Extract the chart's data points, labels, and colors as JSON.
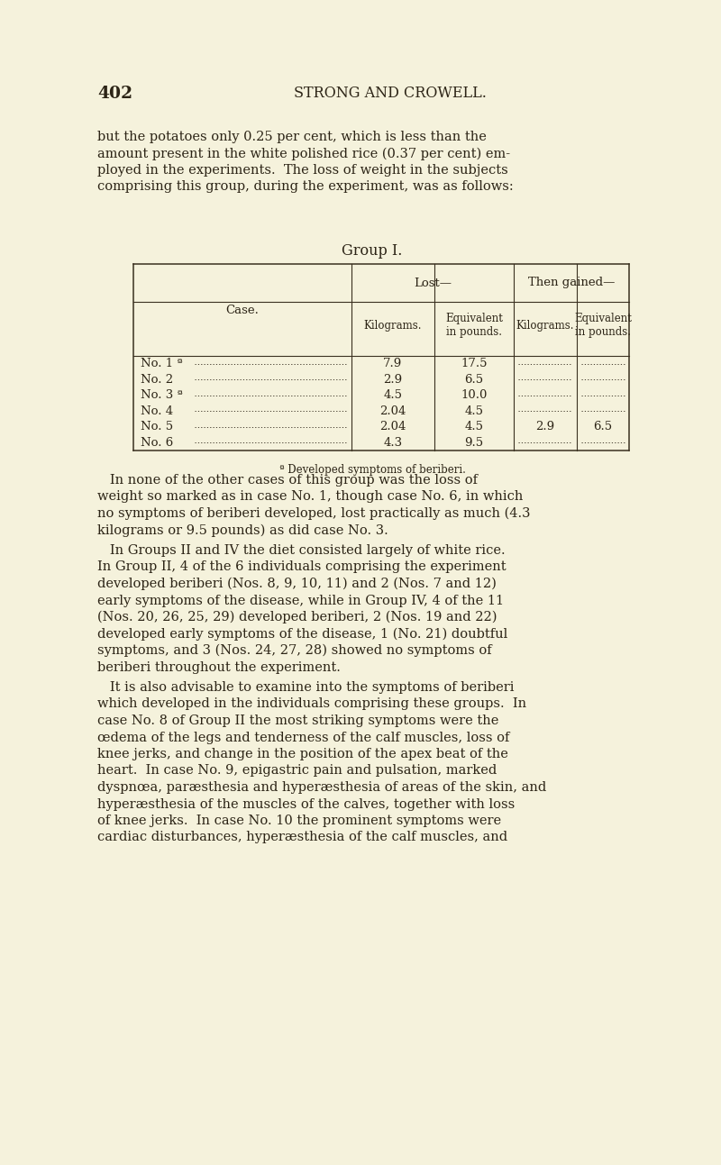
{
  "bg_color": "#f5f2dc",
  "text_color": "#2c2416",
  "page_number": "402",
  "header": "STRONG AND CROWELL.",
  "font_size_body": 10.5,
  "font_size_header": 11.5,
  "font_size_page_num": 13.5,
  "p1_lines": [
    "but the potatoes only 0.25 per cent, which is less than the",
    "amount present in the white polished rice (0.37 per cent) em-",
    "ployed in the experiments.  The loss of weight in the subjects",
    "comprising this group, during the experiment, was as follows:"
  ],
  "table_title": "Group I.",
  "table_rows": [
    [
      "No. 1 ª",
      "7.9",
      "17.5",
      "",
      ""
    ],
    [
      "No. 2",
      "2.9",
      "6.5",
      "",
      ""
    ],
    [
      "No. 3 ª",
      "4.5",
      "10.0",
      "",
      ""
    ],
    [
      "No. 4",
      "2.04",
      "4.5",
      "",
      ""
    ],
    [
      "No. 5",
      "2.04",
      "4.5",
      "2.9",
      "6.5"
    ],
    [
      "No. 6",
      "4.3",
      "9.5",
      "",
      ""
    ]
  ],
  "table_footnote": "ª Developed symptoms of beriberi.",
  "p2_lines": [
    "   In none of the other cases of this group was the loss of",
    "weight so marked as in case No. 1, though case No. 6, in which",
    "no symptoms of beriberi developed, lost practically as much (4.3",
    "kilograms or 9.5 pounds) as did case No. 3."
  ],
  "p3_lines": [
    "   In Groups II and IV the diet consisted largely of white rice.",
    "In Group II, 4 of the 6 individuals comprising the experiment",
    "developed beriberi (Nos. 8, 9, 10, 11) and 2 (Nos. 7 and 12)",
    "early symptoms of the disease, while in Group IV, 4 of the 11",
    "(Nos. 20, 26, 25, 29) developed beriberi, 2 (Nos. 19 and 22)",
    "developed early symptoms of the disease, 1 (No. 21) doubtful",
    "symptoms, and 3 (Nos. 24, 27, 28) showed no symptoms of",
    "beriberi throughout the experiment."
  ],
  "p4_lines": [
    "   It is also advisable to examine into the symptoms of beriberi",
    "which developed in the individuals comprising these groups.  In",
    "case No. 8 of Group II the most striking symptoms were the",
    "œdema of the legs and tenderness of the calf muscles, loss of",
    "knee jerks, and change in the position of the apex beat of the",
    "heart.  In case No. 9, epigastric pain and pulsation, marked",
    "dyspnœa, paræsthesia and hyperæsthesia of areas of the skin, and",
    "hyperæsthesia of the muscles of the calves, together with loss",
    "of knee jerks.  In case No. 10 the prominent symptoms were",
    "cardiac disturbances, hyperæsthesia of the calf muscles, and"
  ]
}
